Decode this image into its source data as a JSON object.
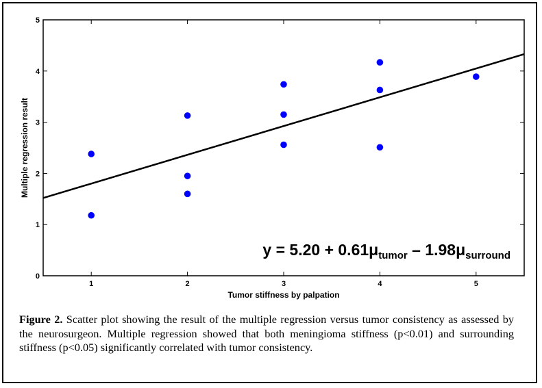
{
  "chart_data": {
    "type": "scatter",
    "xlabel": "Tumor stiffness by palpation",
    "ylabel": "Multiple regression result",
    "xlim": [
      0.5,
      5.5
    ],
    "ylim": [
      0,
      5
    ],
    "xticks": [
      "1",
      "2",
      "3",
      "4",
      "5"
    ],
    "yticks": [
      "0",
      "1",
      "2",
      "3",
      "4",
      "5"
    ],
    "grid": false,
    "marker_color": "#0000ff",
    "points": [
      {
        "x": 1,
        "y": 2.38
      },
      {
        "x": 1,
        "y": 1.18
      },
      {
        "x": 2,
        "y": 3.13
      },
      {
        "x": 2,
        "y": 1.95
      },
      {
        "x": 2,
        "y": 1.6
      },
      {
        "x": 3,
        "y": 3.74
      },
      {
        "x": 3,
        "y": 3.15
      },
      {
        "x": 3,
        "y": 2.56
      },
      {
        "x": 4,
        "y": 4.17
      },
      {
        "x": 4,
        "y": 3.63
      },
      {
        "x": 4,
        "y": 2.51
      },
      {
        "x": 5,
        "y": 3.89
      }
    ],
    "fit_line": {
      "x": [
        0.5,
        5.5
      ],
      "y": [
        1.52,
        4.33
      ]
    },
    "annotation": {
      "main_a": "y = 5.20 + 0.61μ",
      "sub_a": "tumor",
      "main_b": " – 1.98μ",
      "sub_b": "surround"
    }
  },
  "caption": {
    "label": "Figure 2.",
    "text": " Scatter plot showing the result of the multiple regression versus tumor consistency as assessed by the neurosurgeon. Multiple regression showed that both meningioma stiffness (p<0.01) and surrounding stiffness (p<0.05) significantly correlated with tumor consistency."
  }
}
